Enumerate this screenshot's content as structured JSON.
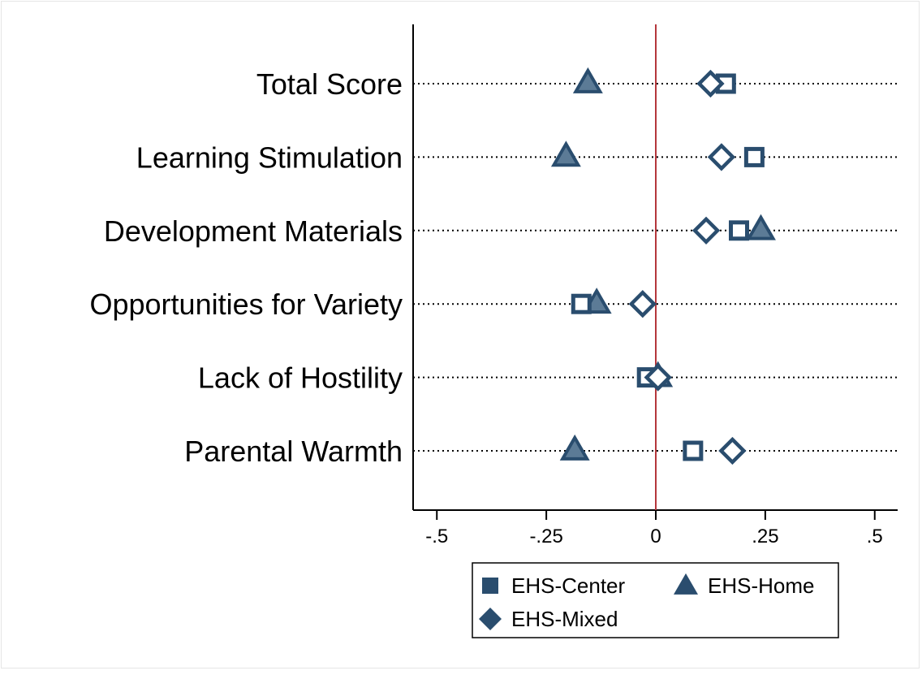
{
  "colors": {
    "marker": "#2a4d6e",
    "zero_line": "#b5373c",
    "axis": "#000000",
    "gridline": "#000000",
    "background": "#ffffff"
  },
  "chart_data": {
    "type": "scatter",
    "orientation": "horizontal",
    "categories": [
      "Total Score",
      "Learning Stimulation",
      "Development Materials",
      "Opportunities for Variety",
      "Lack of Hostility",
      "Parental Warmth"
    ],
    "x_ticks": [
      -0.5,
      -0.25,
      0,
      0.25,
      0.5
    ],
    "x_tick_labels": [
      "-.5",
      "-.25",
      "0",
      ".25",
      ".5"
    ],
    "xlim": [
      -0.53,
      0.555
    ],
    "reference_line_x": 0,
    "dotted_gridlines": true,
    "series": [
      {
        "name": "EHS-Center",
        "marker": "hollow-square",
        "values": [
          0.16,
          0.225,
          0.19,
          -0.17,
          -0.02,
          0.085
        ]
      },
      {
        "name": "EHS-Home",
        "marker": "triangle",
        "values": [
          -0.155,
          -0.205,
          0.24,
          -0.135,
          0.005,
          -0.185
        ]
      },
      {
        "name": "EHS-Mixed",
        "marker": "hollow-diamond",
        "values": [
          0.125,
          0.15,
          0.115,
          -0.03,
          0.005,
          0.175
        ]
      }
    ],
    "legend": {
      "placement": "bottom",
      "columns": 2,
      "entries": [
        {
          "label": "EHS-Center",
          "icon": "filled-square"
        },
        {
          "label": "EHS-Home",
          "icon": "filled-triangle"
        },
        {
          "label": "EHS-Mixed",
          "icon": "filled-diamond"
        }
      ]
    }
  }
}
